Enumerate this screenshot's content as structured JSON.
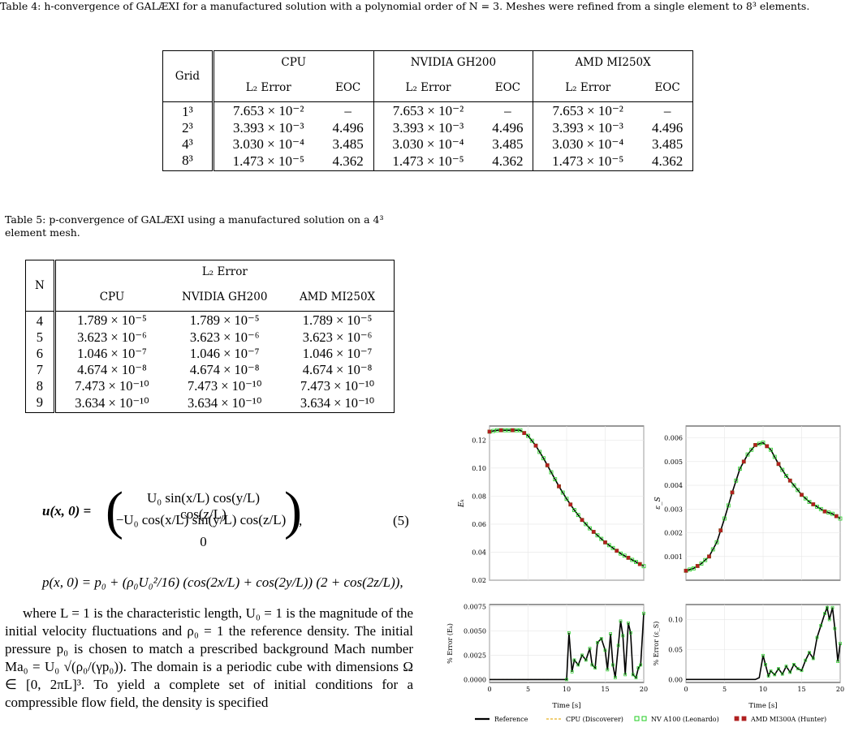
{
  "table4": {
    "caption": "Table 4: h-convergence of GALÆXI for a manufactured solution with a polynomial order of N = 3. Meshes were refined from a single element to 8³ elements.",
    "col_grid": "Grid",
    "groups": [
      "CPU",
      "NVIDIA GH200",
      "AMD MI250X"
    ],
    "sub_err": "L₂ Error",
    "sub_eoc": "EOC",
    "rows": [
      {
        "grid": "1³",
        "err": "7.653 × 10⁻²",
        "eoc": "–"
      },
      {
        "grid": "2³",
        "err": "3.393 × 10⁻³",
        "eoc": "4.496"
      },
      {
        "grid": "4³",
        "err": "3.030 × 10⁻⁴",
        "eoc": "3.485"
      },
      {
        "grid": "8³",
        "err": "1.473 × 10⁻⁵",
        "eoc": "4.362"
      }
    ]
  },
  "table5": {
    "caption": "Table 5: p-convergence of GALÆXI using a manufactured solution on a 4³ element mesh.",
    "col_n": "N",
    "group": "L₂ Error",
    "cols": [
      "CPU",
      "NVIDIA GH200",
      "AMD MI250X"
    ],
    "rows": [
      {
        "n": "4",
        "err": "1.789 × 10⁻⁵"
      },
      {
        "n": "5",
        "err": "3.623 × 10⁻⁶"
      },
      {
        "n": "6",
        "err": "1.046 × 10⁻⁷"
      },
      {
        "n": "7",
        "err": "4.674 × 10⁻⁸"
      },
      {
        "n": "8",
        "err": "7.473 × 10⁻¹⁰"
      },
      {
        "n": "9",
        "err": "3.634 × 10⁻¹⁰"
      }
    ]
  },
  "equation": {
    "number": "(5)",
    "u_lhs": "u(x, 0) =",
    "row1": "U₀ sin(x/L) cos(y/L) cos(z/L)",
    "row2": "−U₀ cos(x/L) sin(y/L) cos(z/L)",
    "row3": "0",
    "p_line": "p(x, 0) = p₀ + (ρ₀U₀²/16) (cos(2x/L) + cos(2y/L)) (2 + cos(2z/L)),"
  },
  "paragraph": "where L = 1 is the characteristic length, U₀ = 1 is the magnitude of the initial velocity fluctuations and ρ₀ = 1 the reference density. The initial pressure p₀ is chosen to match a prescribed background Mach number Ma₀ = U₀ √(ρ₀/(γp₀)). The domain is a periodic cube with dimensions Ω ∈ [0, 2πL]³. To yield a complete set of initial conditions for a compressible flow field, the density is specified",
  "chart_data": [
    {
      "type": "line",
      "panel": "top-left",
      "ylabel": "Eₖ",
      "xlim": [
        0,
        20
      ],
      "ylim": [
        0.02,
        0.13
      ],
      "yticks": [
        "0.02",
        "0.04",
        "0.06",
        "0.08",
        "0.10",
        "0.12"
      ],
      "x": [
        0,
        1,
        2,
        3,
        4,
        5,
        6,
        7,
        8,
        9,
        10,
        11,
        12,
        13,
        14,
        15,
        16,
        17,
        18,
        19,
        20
      ],
      "y": [
        0.126,
        0.127,
        0.127,
        0.127,
        0.127,
        0.123,
        0.116,
        0.107,
        0.097,
        0.087,
        0.078,
        0.07,
        0.063,
        0.057,
        0.052,
        0.047,
        0.043,
        0.039,
        0.036,
        0.033,
        0.03
      ]
    },
    {
      "type": "line",
      "panel": "top-right",
      "ylabel": "ε_S",
      "xlim": [
        0,
        20
      ],
      "ylim": [
        0,
        0.0065
      ],
      "yticks": [
        "0.001",
        "0.002",
        "0.003",
        "0.004",
        "0.005",
        "0.006"
      ],
      "x": [
        0,
        1,
        2,
        3,
        4,
        5,
        6,
        7,
        8,
        9,
        10,
        11,
        12,
        13,
        14,
        15,
        16,
        17,
        18,
        19,
        20
      ],
      "y": [
        0.0004,
        0.0005,
        0.0007,
        0.001,
        0.0016,
        0.0026,
        0.0037,
        0.0047,
        0.0053,
        0.0057,
        0.0058,
        0.0055,
        0.0049,
        0.0044,
        0.004,
        0.0036,
        0.0033,
        0.0031,
        0.0029,
        0.0028,
        0.0026
      ]
    },
    {
      "type": "line",
      "panel": "bottom-left",
      "ylabel": "% Error (Eₖ)",
      "xlabel": "Time [s]",
      "xlim": [
        0,
        20
      ],
      "ylim": [
        -0.0003,
        0.0077
      ],
      "yticks": [
        "0.0000",
        "0.0025",
        "0.0050",
        "0.0075"
      ],
      "xticks": [
        "0",
        "5",
        "10",
        "15",
        "20"
      ],
      "x": [
        0,
        9,
        10,
        10.3,
        10.7,
        11,
        11.5,
        12,
        12.5,
        13,
        13.3,
        13.7,
        14,
        14.5,
        15,
        15.3,
        15.7,
        16,
        16.3,
        16.7,
        17,
        17.3,
        17.6,
        18,
        18.3,
        18.6,
        19,
        19.3,
        19.6,
        20
      ],
      "y": [
        0,
        0,
        0,
        0.0048,
        0.0008,
        0.002,
        0.0015,
        0.0025,
        0.002,
        0.0032,
        0.0015,
        0.0012,
        0.0038,
        0.0042,
        0.003,
        0.001,
        0.0047,
        0.0015,
        0.0002,
        0.0035,
        0.006,
        0.0045,
        0.0005,
        0.0058,
        0.0048,
        0.0005,
        0.0002,
        0.0012,
        0.0015,
        0.0068
      ]
    },
    {
      "type": "line",
      "panel": "bottom-right",
      "ylabel": "% Error (ε_S)",
      "xlabel": "Time [s]",
      "xlim": [
        0,
        20
      ],
      "ylim": [
        -0.005,
        0.125
      ],
      "yticks": [
        "0.00",
        "0.05",
        "0.10"
      ],
      "xticks": [
        "0",
        "5",
        "10",
        "15",
        "20"
      ],
      "x": [
        0,
        9,
        9.5,
        10,
        10.3,
        10.7,
        11,
        11.5,
        12,
        12.5,
        13,
        13.5,
        14,
        14.5,
        15,
        15.5,
        16,
        16.5,
        17,
        17.5,
        18,
        18.3,
        18.6,
        19,
        19.3,
        19.7,
        20
      ],
      "y": [
        0,
        0,
        0.003,
        0.04,
        0.025,
        0.006,
        0.014,
        0.008,
        0.018,
        0.009,
        0.022,
        0.012,
        0.025,
        0.018,
        0.015,
        0.032,
        0.045,
        0.035,
        0.07,
        0.09,
        0.11,
        0.12,
        0.1,
        0.12,
        0.085,
        0.03,
        0.06
      ]
    }
  ],
  "legend": [
    {
      "label": "Reference",
      "color": "#000000",
      "style": "solid-line"
    },
    {
      "label": "CPU (Discoverer)",
      "color": "#e8b020",
      "style": "dashed-line"
    },
    {
      "label": "NV A100 (Leonardo)",
      "color": "#22cc22",
      "style": "square-marker"
    },
    {
      "label": "AMD MI300A (Hunter)",
      "color": "#b02020",
      "style": "x-square-marker"
    }
  ]
}
